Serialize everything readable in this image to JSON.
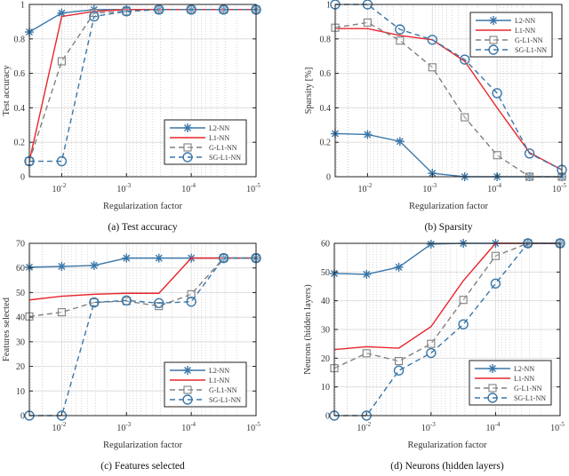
{
  "figure": {
    "stray_mark": "."
  },
  "chart_data": [
    {
      "id": "a",
      "type": "line",
      "caption": "(a) Test accuracy",
      "xlabel": "Regularization factor",
      "ylabel": "Test accuracy",
      "x_scale": "log-reversed",
      "x": [
        0.0316,
        0.01,
        0.00316,
        0.001,
        0.000316,
        0.0001,
        3.16e-05,
        1e-05
      ],
      "x_ticks": [
        {
          "value": 0.01,
          "base": "10",
          "exp": "-2"
        },
        {
          "value": 0.001,
          "base": "10",
          "exp": "-3"
        },
        {
          "value": 0.0001,
          "base": "10",
          "exp": "-4"
        },
        {
          "value": 1e-05,
          "base": "10",
          "exp": "-5"
        }
      ],
      "xlim": [
        0.0316,
        1e-05
      ],
      "ylim": [
        0,
        1
      ],
      "y_ticks": [
        "0",
        "0.2",
        "0.4",
        "0.6",
        "0.8",
        "1"
      ],
      "y_tick_values": [
        0,
        0.2,
        0.4,
        0.6,
        0.8,
        1
      ],
      "grid": true,
      "legend_position": "lower-right",
      "series": [
        {
          "name": "L2-NN",
          "color": "#3b77a8",
          "style": "solid",
          "marker": "asterisk",
          "values": [
            0.84,
            0.95,
            0.97,
            0.97,
            0.97,
            0.97,
            0.97,
            0.97
          ]
        },
        {
          "name": "L1-NN",
          "color": "#e8262d",
          "style": "solid",
          "marker": "none",
          "values": [
            0.09,
            0.93,
            0.96,
            0.97,
            0.97,
            0.97,
            0.97,
            0.97
          ]
        },
        {
          "name": "G-L1-NN",
          "color": "#808080",
          "style": "dashed",
          "marker": "square",
          "values": [
            0.09,
            0.67,
            0.95,
            0.96,
            0.97,
            0.97,
            0.97,
            0.97
          ]
        },
        {
          "name": "SG-L1-NN",
          "color": "#3b77a8",
          "style": "dashed",
          "marker": "circle",
          "values": [
            0.09,
            0.09,
            0.93,
            0.96,
            0.97,
            0.97,
            0.97,
            0.97
          ]
        }
      ]
    },
    {
      "id": "b",
      "type": "line",
      "caption": "(b)  Sparsity",
      "xlabel": "Regularization factor",
      "ylabel": "Sparsity [%]",
      "x_scale": "log-reversed",
      "x": [
        0.0316,
        0.01,
        0.00316,
        0.001,
        0.000316,
        0.0001,
        3.16e-05,
        1e-05
      ],
      "x_ticks": [
        {
          "value": 0.01,
          "base": "10",
          "exp": "-2"
        },
        {
          "value": 0.001,
          "base": "10",
          "exp": "-3"
        },
        {
          "value": 0.0001,
          "base": "10",
          "exp": "-4"
        },
        {
          "value": 1e-05,
          "base": "10",
          "exp": "-5"
        }
      ],
      "xlim": [
        0.0316,
        1e-05
      ],
      "ylim": [
        0,
        1
      ],
      "y_ticks": [
        "0",
        "0.2",
        "0.4",
        "0.6",
        "0.8",
        "1"
      ],
      "y_tick_values": [
        0,
        0.2,
        0.4,
        0.6,
        0.8,
        1
      ],
      "grid": true,
      "legend_position": "top-right",
      "series": [
        {
          "name": "L2-NN",
          "color": "#3b77a8",
          "style": "solid",
          "marker": "asterisk",
          "values": [
            0.25,
            0.245,
            0.205,
            0.02,
            0.0,
            0.0,
            0.0,
            0.0
          ]
        },
        {
          "name": "L1-NN",
          "color": "#e8262d",
          "style": "solid",
          "marker": "none",
          "values": [
            0.86,
            0.86,
            0.82,
            0.795,
            0.67,
            0.4,
            0.14,
            0.04
          ]
        },
        {
          "name": "G-L1-NN",
          "color": "#808080",
          "style": "dashed",
          "marker": "square",
          "values": [
            0.865,
            0.895,
            0.79,
            0.635,
            0.345,
            0.125,
            0.0,
            0.0
          ]
        },
        {
          "name": "SG-L1-NN",
          "color": "#3b77a8",
          "style": "dashed",
          "marker": "circle",
          "values": [
            1.0,
            1.0,
            0.855,
            0.795,
            0.68,
            0.485,
            0.135,
            0.04
          ]
        }
      ]
    },
    {
      "id": "c",
      "type": "line",
      "caption": "(c) Features selected",
      "xlabel": "Regularization factor",
      "ylabel": "Features selected",
      "x_scale": "log-reversed",
      "x": [
        0.0316,
        0.01,
        0.00316,
        0.001,
        0.000316,
        0.0001,
        3.16e-05,
        1e-05
      ],
      "x_ticks": [
        {
          "value": 0.01,
          "base": "10",
          "exp": "-2"
        },
        {
          "value": 0.001,
          "base": "10",
          "exp": "-3"
        },
        {
          "value": 0.0001,
          "base": "10",
          "exp": "-4"
        },
        {
          "value": 1e-05,
          "base": "10",
          "exp": "-5"
        }
      ],
      "xlim": [
        0.0316,
        1e-05
      ],
      "ylim": [
        0,
        70
      ],
      "y_ticks": [
        "0",
        "10",
        "20",
        "30",
        "40",
        "50",
        "60",
        "70"
      ],
      "y_tick_values": [
        0,
        10,
        20,
        30,
        40,
        50,
        60,
        70
      ],
      "grid": true,
      "legend_position": "lower-right",
      "series": [
        {
          "name": "L2-NN",
          "color": "#3b77a8",
          "style": "solid",
          "marker": "asterisk",
          "values": [
            60.3,
            60.6,
            61,
            64,
            64,
            64,
            64,
            64
          ]
        },
        {
          "name": "L1-NN",
          "color": "#e8262d",
          "style": "solid",
          "marker": "none",
          "values": [
            47,
            48.5,
            49.3,
            49.7,
            49.7,
            64,
            64,
            64
          ]
        },
        {
          "name": "G-L1-NN",
          "color": "#808080",
          "style": "dashed",
          "marker": "square",
          "values": [
            40.3,
            42,
            46,
            46.5,
            44.5,
            49.3,
            64,
            64
          ]
        },
        {
          "name": "SG-L1-NN",
          "color": "#3b77a8",
          "style": "dashed",
          "marker": "circle",
          "values": [
            0,
            0,
            46,
            46.8,
            45.7,
            46.3,
            64,
            64
          ]
        }
      ]
    },
    {
      "id": "d",
      "type": "line",
      "caption": "(d) Neurons (hidden layers)",
      "xlabel": "Regularization factor",
      "ylabel": "Neurons (hidden layers)",
      "x_scale": "log-reversed",
      "x": [
        0.0316,
        0.01,
        0.00316,
        0.001,
        0.000316,
        0.0001,
        3.16e-05,
        1e-05
      ],
      "x_ticks": [
        {
          "value": 0.01,
          "base": "10",
          "exp": "-2"
        },
        {
          "value": 0.001,
          "base": "10",
          "exp": "-3"
        },
        {
          "value": 0.0001,
          "base": "10",
          "exp": "-4"
        },
        {
          "value": 1e-05,
          "base": "10",
          "exp": "-5"
        }
      ],
      "xlim": [
        0.0316,
        1e-05
      ],
      "ylim": [
        0,
        60
      ],
      "y_ticks": [
        "0",
        "10",
        "20",
        "30",
        "40",
        "50",
        "60"
      ],
      "y_tick_values": [
        0,
        10,
        20,
        30,
        40,
        50,
        60
      ],
      "grid": true,
      "legend_position": "lower-right",
      "series": [
        {
          "name": "L2-NN",
          "color": "#3b77a8",
          "style": "solid",
          "marker": "asterisk",
          "values": [
            49.5,
            49.2,
            51.7,
            59.7,
            60,
            60,
            60,
            60
          ]
        },
        {
          "name": "L1-NN",
          "color": "#e8262d",
          "style": "solid",
          "marker": "none",
          "values": [
            23,
            24,
            23.5,
            31,
            47,
            60,
            60,
            60
          ]
        },
        {
          "name": "G-L1-NN",
          "color": "#808080",
          "style": "dashed",
          "marker": "square",
          "values": [
            16.5,
            21.7,
            19,
            25,
            40.3,
            55.6,
            60,
            60
          ]
        },
        {
          "name": "SG-L1-NN",
          "color": "#3b77a8",
          "style": "dashed",
          "marker": "circle",
          "values": [
            0,
            0,
            15.7,
            21.8,
            31.8,
            46,
            60,
            60
          ]
        }
      ]
    }
  ]
}
